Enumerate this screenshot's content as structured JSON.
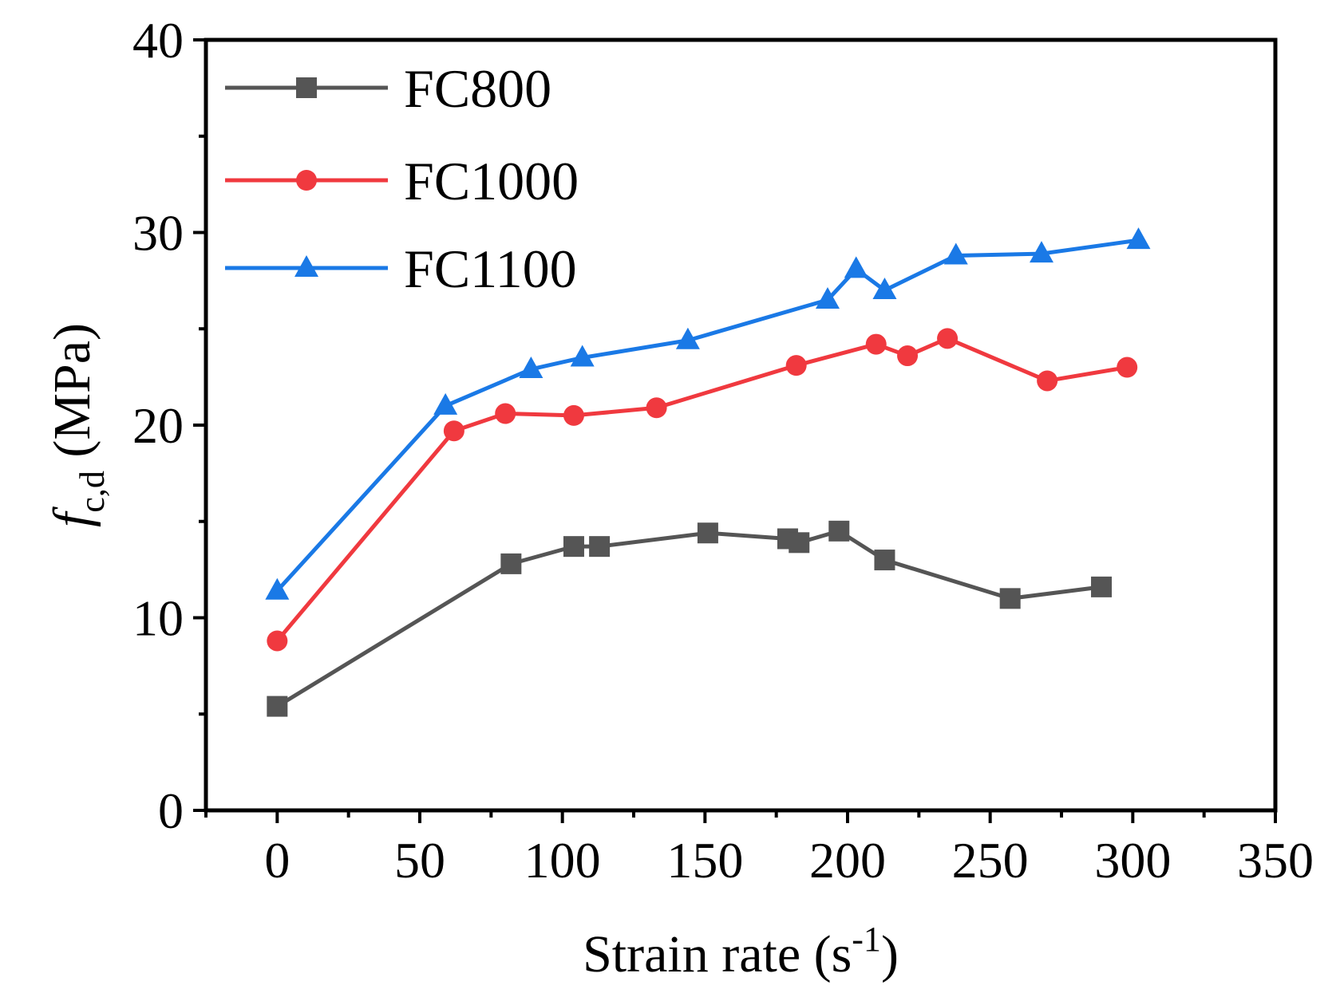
{
  "chart_data": {
    "type": "line",
    "title": "",
    "xlabel_main": "Strain rate (s",
    "xlabel_sup": "-1",
    "xlabel_close": ")",
    "ylabel_symbol": "f",
    "ylabel_sub": "c,d",
    "ylabel_unit": " (MPa)",
    "xlim": [
      -25,
      350
    ],
    "ylim": [
      0,
      40
    ],
    "x_ticks": [
      0,
      50,
      100,
      150,
      200,
      250,
      300,
      350
    ],
    "y_ticks": [
      0,
      10,
      20,
      30,
      40
    ],
    "legend_position": "top-left",
    "grid": false,
    "series": [
      {
        "name": "FC800",
        "color": "#555555",
        "marker": "square",
        "x": [
          0,
          82,
          104,
          113,
          151,
          179,
          183,
          197,
          213,
          257,
          289
        ],
        "y": [
          5.4,
          12.8,
          13.7,
          13.7,
          14.4,
          14.1,
          13.9,
          14.5,
          13.0,
          11.0,
          11.6
        ]
      },
      {
        "name": "FC1000",
        "color": "#f0393f",
        "marker": "circle",
        "x": [
          0,
          62,
          80,
          104,
          133,
          182,
          210,
          221,
          235,
          270,
          298
        ],
        "y": [
          8.8,
          19.7,
          20.6,
          20.5,
          20.9,
          23.1,
          24.2,
          23.6,
          24.5,
          22.3,
          23.0
        ]
      },
      {
        "name": "FC1100",
        "color": "#1a79e6",
        "marker": "triangle",
        "x": [
          0,
          59,
          89,
          107,
          144,
          193,
          203,
          213,
          238,
          268,
          302
        ],
        "y": [
          11.4,
          21.0,
          22.9,
          23.5,
          24.4,
          26.5,
          28.1,
          27.0,
          28.8,
          28.9,
          29.6
        ]
      }
    ]
  }
}
